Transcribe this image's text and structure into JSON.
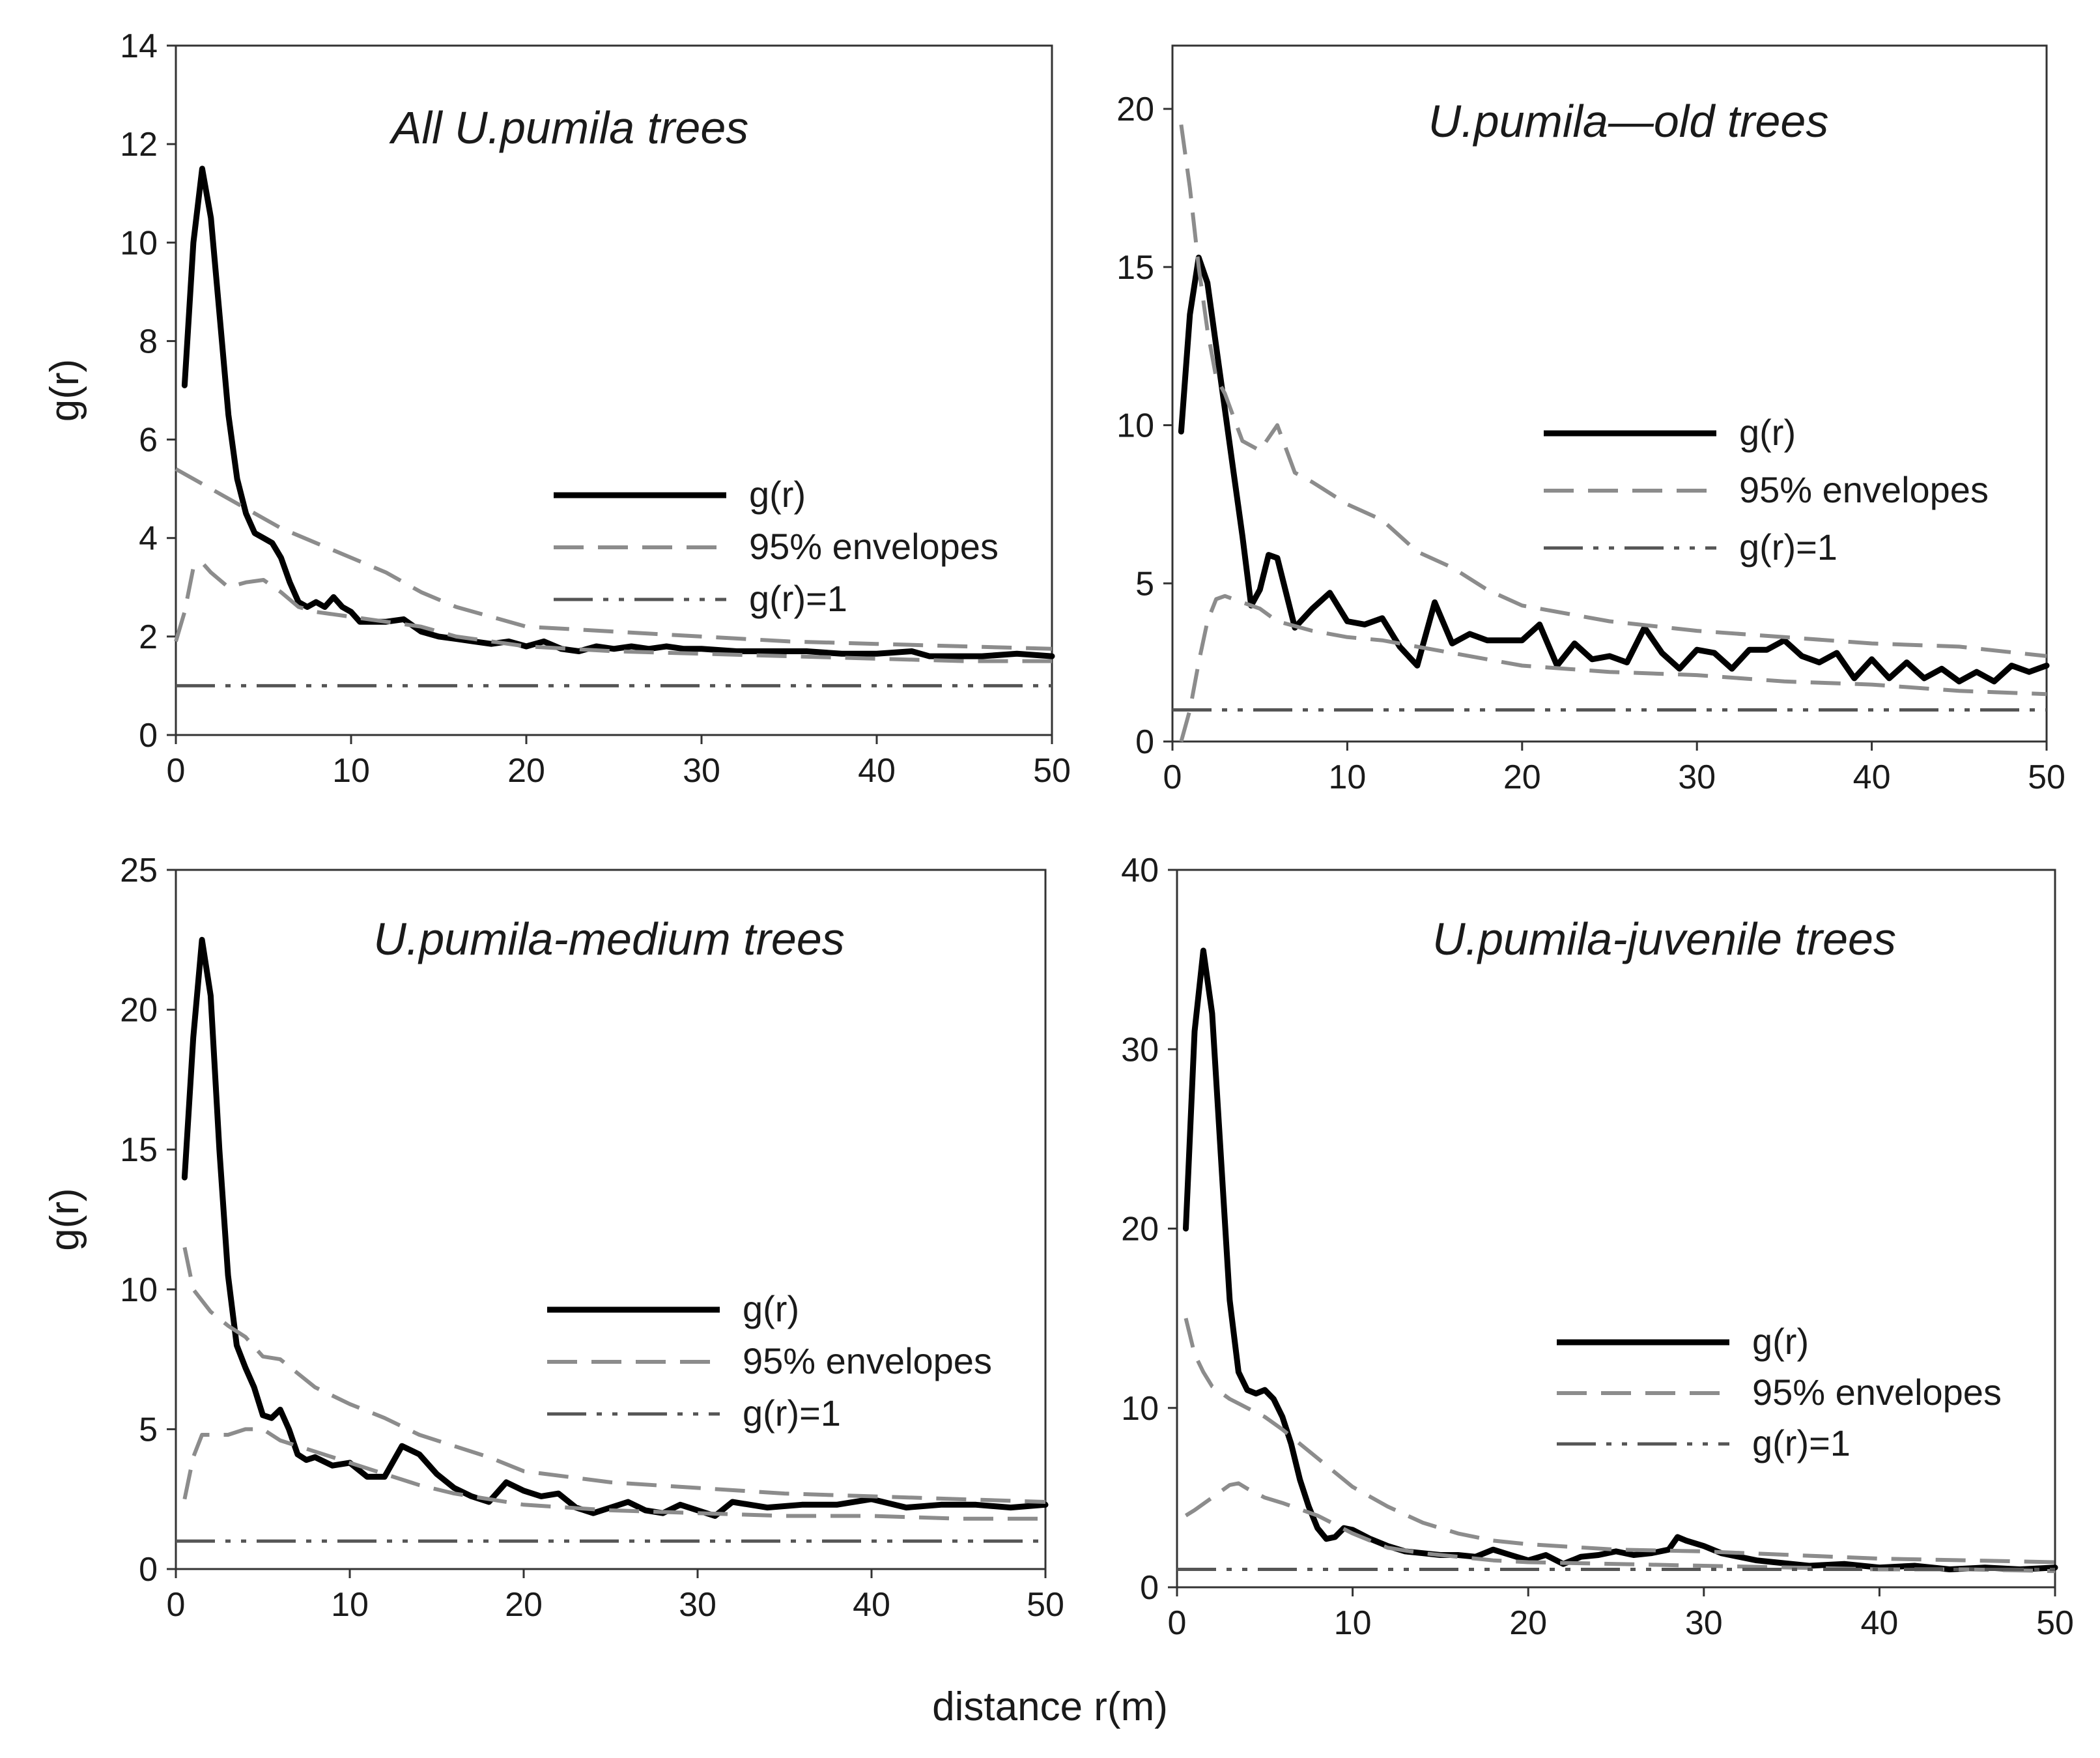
{
  "colors": {
    "observed": "#000000",
    "envelope": "#8c8c8c",
    "reference": "#555555",
    "axis": "#333333"
  },
  "common_xlabel": "distance r(m)",
  "chart_data": [
    {
      "type": "line",
      "title": "All U.pumila trees",
      "xlabel": "",
      "ylabel": "g(r)",
      "xlim": [
        0,
        50
      ],
      "ylim": [
        0,
        14
      ],
      "xticks": [
        0,
        10,
        20,
        30,
        40,
        50
      ],
      "yticks": [
        0,
        2,
        4,
        6,
        8,
        10,
        12,
        14
      ],
      "legend": {
        "position": "right-middle",
        "entries": [
          "g(r)",
          "95% envelopes",
          "g(r)=1"
        ]
      },
      "series": [
        {
          "name": "g(r)",
          "style": "solid",
          "x": [
            0.5,
            1,
            1.5,
            2,
            2.5,
            3,
            3.5,
            4,
            4.5,
            5,
            5.5,
            6,
            6.5,
            7,
            7.5,
            8,
            8.5,
            9,
            9.5,
            10,
            10.5,
            11,
            12,
            13,
            14,
            15,
            16,
            17,
            18,
            19,
            20,
            21,
            22,
            23,
            24,
            25,
            26,
            27,
            28,
            29,
            30,
            32,
            34,
            36,
            38,
            40,
            42,
            43,
            44,
            46,
            48,
            50
          ],
          "y": [
            7.1,
            10,
            11.5,
            10.5,
            8.5,
            6.5,
            5.2,
            4.5,
            4.1,
            4.0,
            3.9,
            3.6,
            3.1,
            2.7,
            2.6,
            2.7,
            2.6,
            2.8,
            2.6,
            2.5,
            2.3,
            2.3,
            2.3,
            2.35,
            2.1,
            2.0,
            1.95,
            1.9,
            1.85,
            1.9,
            1.8,
            1.9,
            1.75,
            1.7,
            1.8,
            1.75,
            1.8,
            1.75,
            1.8,
            1.75,
            1.75,
            1.7,
            1.7,
            1.7,
            1.65,
            1.65,
            1.7,
            1.6,
            1.6,
            1.6,
            1.65,
            1.6
          ]
        },
        {
          "name": "95% envelopes (upper)",
          "style": "dashed",
          "x": [
            0,
            2,
            4,
            6,
            8,
            10,
            12,
            14,
            16,
            18,
            20,
            25,
            30,
            35,
            40,
            45,
            50
          ],
          "y": [
            5.4,
            5.0,
            4.6,
            4.2,
            3.9,
            3.6,
            3.3,
            2.9,
            2.6,
            2.4,
            2.2,
            2.1,
            2.0,
            1.9,
            1.85,
            1.8,
            1.75
          ]
        },
        {
          "name": "95% envelopes (lower)",
          "style": "dashed",
          "x": [
            0,
            0.5,
            1,
            1.5,
            2,
            3,
            4,
            5,
            6,
            7,
            8,
            10,
            12,
            14,
            16,
            18,
            20,
            25,
            30,
            35,
            40,
            45,
            50
          ],
          "y": [
            1.9,
            2.5,
            3.4,
            3.5,
            3.3,
            3.0,
            3.1,
            3.15,
            2.9,
            2.6,
            2.5,
            2.4,
            2.3,
            2.2,
            2.0,
            1.9,
            1.8,
            1.7,
            1.65,
            1.6,
            1.55,
            1.5,
            1.5
          ]
        },
        {
          "name": "g(r)=1",
          "style": "dashdot",
          "x": [
            0,
            50
          ],
          "y": [
            1,
            1
          ]
        }
      ]
    },
    {
      "type": "line",
      "title": "U.pumila—old trees",
      "xlabel": "",
      "ylabel": "",
      "xlim": [
        0,
        50
      ],
      "ylim": [
        0,
        22
      ],
      "xticks": [
        0,
        10,
        20,
        30,
        40,
        50
      ],
      "yticks": [
        0,
        5,
        10,
        15,
        20
      ],
      "legend": {
        "position": "right-middle",
        "entries": [
          "g(r)",
          "95% envelopes",
          "g(r)=1"
        ]
      },
      "series": [
        {
          "name": "g(r)",
          "style": "solid",
          "x": [
            0.5,
            1,
            1.5,
            2,
            2.5,
            3,
            3.5,
            4,
            4.5,
            5,
            5.5,
            6,
            7,
            8,
            9,
            10,
            11,
            12,
            13,
            14,
            15,
            16,
            17,
            18,
            19,
            20,
            21,
            22,
            23,
            24,
            25,
            26,
            27,
            28,
            29,
            30,
            31,
            32,
            33,
            34,
            35,
            36,
            37,
            38,
            39,
            40,
            41,
            42,
            43,
            44,
            45,
            46,
            47,
            48,
            49,
            50
          ],
          "y": [
            9.8,
            13.5,
            15.3,
            14.5,
            12.5,
            10.5,
            8.5,
            6.5,
            4.3,
            4.8,
            5.9,
            5.8,
            3.6,
            4.2,
            4.7,
            3.8,
            3.7,
            3.9,
            3.0,
            2.4,
            4.4,
            3.1,
            3.4,
            3.2,
            3.2,
            3.2,
            3.7,
            2.4,
            3.1,
            2.6,
            2.7,
            2.5,
            3.6,
            2.8,
            2.3,
            2.9,
            2.8,
            2.3,
            2.9,
            2.9,
            3.2,
            2.7,
            2.5,
            2.8,
            2.0,
            2.6,
            2.0,
            2.5,
            2.0,
            2.3,
            1.9,
            2.2,
            1.9,
            2.4,
            2.2,
            2.4
          ]
        },
        {
          "name": "95% envelopes (upper)",
          "style": "dashed",
          "x": [
            0.5,
            1,
            1.5,
            2,
            2.5,
            3,
            4,
            5,
            6,
            7,
            8,
            10,
            12,
            14,
            16,
            18,
            20,
            25,
            30,
            35,
            40,
            45,
            50
          ],
          "y": [
            19.5,
            17.5,
            15,
            13,
            11.5,
            11,
            9.5,
            9.2,
            10,
            8.5,
            8.2,
            7.5,
            7.0,
            6.0,
            5.5,
            4.8,
            4.3,
            3.8,
            3.5,
            3.3,
            3.1,
            3.0,
            2.7
          ]
        },
        {
          "name": "95% envelopes (lower)",
          "style": "dashed",
          "x": [
            0.5,
            1,
            1.5,
            2,
            2.5,
            3,
            4,
            5,
            6,
            8,
            10,
            12,
            14,
            16,
            18,
            20,
            25,
            30,
            35,
            40,
            45,
            50
          ],
          "y": [
            0,
            1.0,
            2.5,
            3.8,
            4.5,
            4.6,
            4.4,
            4.2,
            3.8,
            3.5,
            3.3,
            3.2,
            3.0,
            2.8,
            2.6,
            2.4,
            2.2,
            2.1,
            1.9,
            1.8,
            1.6,
            1.5
          ]
        },
        {
          "name": "g(r)=1",
          "style": "dashdot",
          "x": [
            0,
            50
          ],
          "y": [
            1,
            1
          ]
        }
      ]
    },
    {
      "type": "line",
      "title": "U.pumila-medium trees",
      "xlabel": "",
      "ylabel": "g(r)",
      "xlim": [
        0,
        50
      ],
      "ylim": [
        0,
        25
      ],
      "xticks": [
        0,
        10,
        20,
        30,
        40,
        50
      ],
      "yticks": [
        0,
        5,
        10,
        15,
        20,
        25
      ],
      "legend": {
        "position": "right-middle",
        "entries": [
          "g(r)",
          "95% envelopes",
          "g(r)=1"
        ]
      },
      "series": [
        {
          "name": "g(r)",
          "style": "solid",
          "x": [
            0.5,
            1,
            1.5,
            2,
            2.5,
            3,
            3.5,
            4,
            4.5,
            5,
            5.5,
            6,
            6.5,
            7,
            7.5,
            8,
            9,
            10,
            11,
            12,
            13,
            14,
            15,
            16,
            17,
            18,
            19,
            20,
            21,
            22,
            23,
            24,
            25,
            26,
            27,
            28,
            29,
            30,
            31,
            32,
            34,
            36,
            38,
            40,
            42,
            44,
            46,
            48,
            50
          ],
          "y": [
            14,
            19,
            22.5,
            20.5,
            15,
            10.5,
            8,
            7.2,
            6.5,
            5.5,
            5.4,
            5.7,
            5.0,
            4.1,
            3.9,
            4.0,
            3.7,
            3.8,
            3.3,
            3.3,
            4.4,
            4.1,
            3.4,
            2.9,
            2.6,
            2.4,
            3.1,
            2.8,
            2.6,
            2.7,
            2.2,
            2.0,
            2.2,
            2.4,
            2.1,
            2.0,
            2.3,
            2.1,
            1.9,
            2.4,
            2.2,
            2.3,
            2.3,
            2.5,
            2.2,
            2.3,
            2.3,
            2.2,
            2.3
          ]
        },
        {
          "name": "95% envelopes (upper)",
          "style": "dashed",
          "x": [
            0.5,
            1,
            2,
            3,
            4,
            5,
            6,
            8,
            10,
            12,
            14,
            16,
            18,
            20,
            25,
            30,
            35,
            40,
            45,
            50
          ],
          "y": [
            11.5,
            10,
            9.2,
            8.7,
            8.3,
            7.6,
            7.5,
            6.5,
            5.9,
            5.4,
            4.8,
            4.4,
            4.0,
            3.5,
            3.1,
            2.9,
            2.7,
            2.6,
            2.5,
            2.4
          ]
        },
        {
          "name": "95% envelopes (lower)",
          "style": "dashed",
          "x": [
            0.5,
            1,
            1.5,
            2,
            3,
            4,
            5,
            6,
            8,
            10,
            12,
            14,
            16,
            18,
            20,
            25,
            30,
            35,
            40,
            45,
            50
          ],
          "y": [
            2.5,
            4.0,
            4.8,
            4.8,
            4.8,
            5.0,
            5.0,
            4.6,
            4.2,
            3.8,
            3.4,
            3.0,
            2.7,
            2.5,
            2.3,
            2.1,
            2.0,
            1.9,
            1.9,
            1.8,
            1.8
          ]
        },
        {
          "name": "g(r)=1",
          "style": "dashdot",
          "x": [
            0,
            50
          ],
          "y": [
            1,
            1
          ]
        }
      ]
    },
    {
      "type": "line",
      "title": "U.pumila-juvenile trees",
      "xlabel": "",
      "ylabel": "",
      "xlim": [
        0,
        50
      ],
      "ylim": [
        0,
        40
      ],
      "xticks": [
        0,
        10,
        20,
        30,
        40,
        50
      ],
      "yticks": [
        0,
        10,
        20,
        30,
        40
      ],
      "legend": {
        "position": "right-middle",
        "entries": [
          "g(r)",
          "95% envelopes",
          "g(r)=1"
        ]
      },
      "series": [
        {
          "name": "g(r)",
          "style": "solid",
          "x": [
            0.5,
            1,
            1.5,
            2,
            2.5,
            3,
            3.5,
            4,
            4.5,
            5,
            5.5,
            6,
            6.5,
            7,
            7.5,
            8,
            8.5,
            9,
            9.5,
            10,
            11,
            12,
            13,
            14,
            15,
            16,
            17,
            18,
            19,
            20,
            21,
            22,
            23,
            24,
            25,
            26,
            27,
            28,
            28.5,
            29,
            30,
            31,
            32,
            33,
            34,
            35,
            36,
            38,
            40,
            42,
            44,
            46,
            48,
            50
          ],
          "y": [
            20,
            31,
            35.5,
            32,
            24,
            16,
            12,
            11,
            10.8,
            11,
            10.5,
            9.5,
            8,
            6,
            4.5,
            3.3,
            2.7,
            2.8,
            3.3,
            3.2,
            2.7,
            2.3,
            2.0,
            1.9,
            1.8,
            1.8,
            1.7,
            2.1,
            1.8,
            1.5,
            1.8,
            1.3,
            1.7,
            1.8,
            2.0,
            1.8,
            1.9,
            2.1,
            2.8,
            2.6,
            2.3,
            1.9,
            1.7,
            1.5,
            1.4,
            1.3,
            1.2,
            1.3,
            1.1,
            1.2,
            1.0,
            1.1,
            1.0,
            1.1
          ]
        },
        {
          "name": "95% envelopes (upper)",
          "style": "dashed",
          "x": [
            0.5,
            1,
            1.5,
            2,
            3,
            4,
            5,
            6,
            7,
            8,
            10,
            12,
            14,
            16,
            18,
            20,
            25,
            30,
            35,
            40,
            45,
            50
          ],
          "y": [
            15,
            13,
            12,
            11.2,
            10.5,
            10,
            9.5,
            8.8,
            8.0,
            7.2,
            5.6,
            4.5,
            3.6,
            3.0,
            2.6,
            2.4,
            2.1,
            2.0,
            1.8,
            1.6,
            1.5,
            1.4
          ]
        },
        {
          "name": "95% envelopes (lower)",
          "style": "dashed",
          "x": [
            0.5,
            1,
            2,
            3,
            3.5,
            4,
            5,
            6,
            8,
            10,
            12,
            14,
            16,
            18,
            20,
            25,
            30,
            35,
            40,
            45,
            50
          ],
          "y": [
            4,
            4.3,
            5.0,
            5.7,
            5.8,
            5.5,
            5.0,
            4.7,
            4.0,
            3.0,
            2.2,
            1.9,
            1.7,
            1.5,
            1.4,
            1.3,
            1.2,
            1.1,
            1.0,
            1.0,
            0.9
          ]
        },
        {
          "name": "g(r)=1",
          "style": "dashdot",
          "x": [
            0,
            50
          ],
          "y": [
            1,
            1
          ]
        }
      ]
    }
  ]
}
